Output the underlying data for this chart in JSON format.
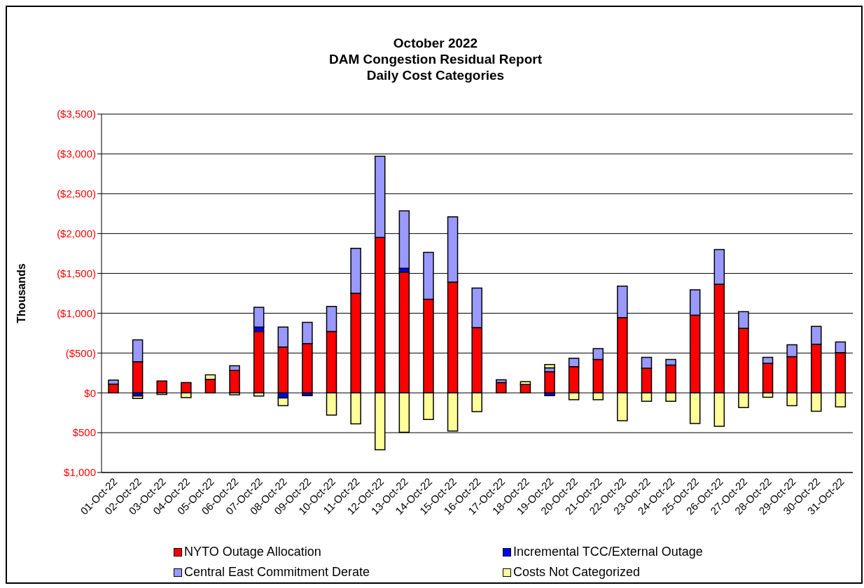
{
  "chart_data": {
    "type": "bar",
    "title": "October 2022\nDAM Congestion Residual Report\nDaily Cost Categories",
    "ylabel": "Thousands",
    "categories": [
      "01-Oct-22",
      "02-Oct-22",
      "03-Oct-22",
      "04-Oct-22",
      "05-Oct-22",
      "06-Oct-22",
      "07-Oct-22",
      "08-Oct-22",
      "09-Oct-22",
      "10-Oct-22",
      "11-Oct-22",
      "12-Oct-22",
      "13-Oct-22",
      "14-Oct-22",
      "15-Oct-22",
      "16-Oct-22",
      "17-Oct-22",
      "18-Oct-22",
      "19-Oct-22",
      "20-Oct-22",
      "21-Oct-22",
      "22-Oct-22",
      "23-Oct-22",
      "24-Oct-22",
      "25-Oct-22",
      "26-Oct-22",
      "27-Oct-22",
      "28-Oct-22",
      "29-Oct-22",
      "30-Oct-22",
      "31-Oct-22"
    ],
    "series": [
      {
        "name": "NYTO Outage Allocation",
        "color": "#ff0000",
        "values": [
          -110,
          -390,
          -150,
          -130,
          -170,
          -280,
          -770,
          -575,
          -620,
          -770,
          -1250,
          -1950,
          -1515,
          -1175,
          -1390,
          -820,
          -130,
          -105,
          -265,
          -330,
          -420,
          -945,
          -310,
          -350,
          -975,
          -1365,
          -810,
          -370,
          -455,
          -610,
          -505
        ]
      },
      {
        "name": "Incremental TCC/External Outage",
        "color": "#0000ff",
        "values": [
          null,
          40,
          null,
          null,
          null,
          null,
          -55,
          65,
          35,
          null,
          null,
          null,
          -50,
          null,
          null,
          null,
          null,
          null,
          35,
          null,
          null,
          null,
          null,
          null,
          null,
          null,
          null,
          null,
          null,
          null,
          null
        ]
      },
      {
        "name": "Central East Commitment Derate",
        "color": "#9999ff",
        "values": [
          -50,
          -275,
          null,
          null,
          null,
          -60,
          -250,
          -250,
          -265,
          -315,
          -565,
          -1020,
          -720,
          -590,
          -820,
          -495,
          -35,
          null,
          -50,
          -105,
          -135,
          -395,
          -135,
          -70,
          -320,
          -435,
          -210,
          -75,
          -150,
          -225,
          -135
        ]
      },
      {
        "name": "Costs Not Categorized",
        "color": "#ffff99",
        "values": [
          null,
          30,
          20,
          60,
          -55,
          25,
          40,
          95,
          null,
          280,
          390,
          715,
          495,
          335,
          480,
          235,
          null,
          -35,
          -40,
          85,
          85,
          350,
          105,
          105,
          385,
          420,
          185,
          55,
          160,
          230,
          175
        ]
      }
    ],
    "ylim": [
      1000,
      -3500
    ],
    "yticks": [
      {
        "value": 1000,
        "label": "$1,000"
      },
      {
        "value": 500,
        "label": "$500"
      },
      {
        "value": 0,
        "label": "$0"
      },
      {
        "value": -500,
        "label": "($500)"
      },
      {
        "value": -1000,
        "label": "($1,000)"
      },
      {
        "value": -1500,
        "label": "($1,500)"
      },
      {
        "value": -2000,
        "label": "($2,000)"
      },
      {
        "value": -2500,
        "label": "($2,500)"
      },
      {
        "value": -3000,
        "label": "($3,000)"
      },
      {
        "value": -3500,
        "label": "($3,500)"
      }
    ],
    "stacked": true,
    "grid": "y",
    "legend": "bottom"
  }
}
